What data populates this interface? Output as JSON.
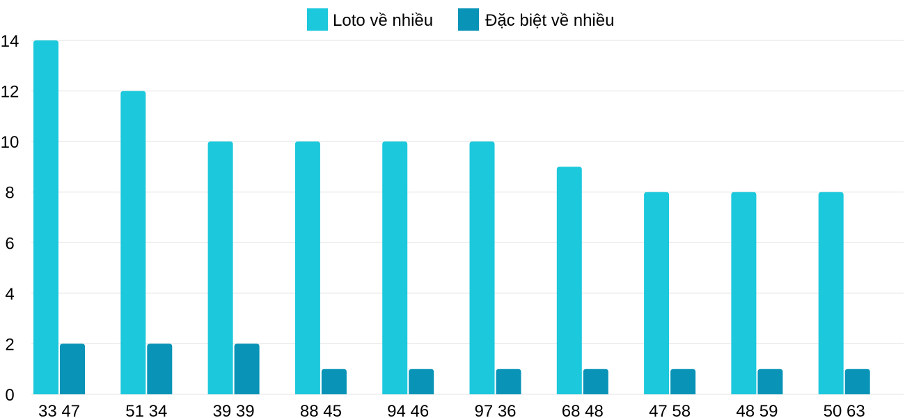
{
  "chart_data": {
    "type": "bar",
    "categories": [
      "33 47",
      "51 34",
      "39 39",
      "88 45",
      "94 46",
      "97 36",
      "68 48",
      "47 58",
      "48 59",
      "50 63"
    ],
    "series": [
      {
        "name": "Loto về nhiều",
        "color": "#1bc8dc",
        "values": [
          14,
          12,
          10,
          10,
          10,
          10,
          9,
          8,
          8,
          8
        ]
      },
      {
        "name": "Đặc biệt về nhiều",
        "color": "#0893b7",
        "values": [
          2,
          2,
          2,
          1,
          1,
          1,
          1,
          1,
          1,
          1
        ]
      }
    ],
    "title": "",
    "xlabel": "",
    "ylabel": "",
    "ylim": [
      0,
      14
    ],
    "yticks": [
      0,
      2,
      4,
      6,
      8,
      10,
      12,
      14
    ],
    "grid": true,
    "legend_position": "top-center"
  }
}
